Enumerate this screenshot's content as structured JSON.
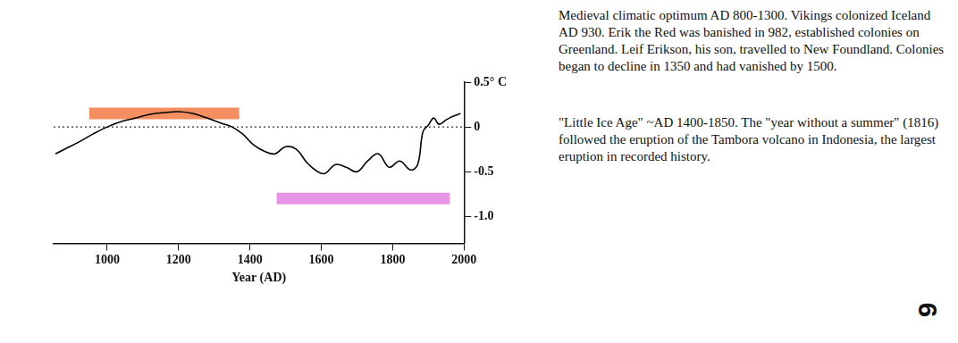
{
  "chart_data": {
    "type": "line",
    "x": [
      855,
      880,
      920,
      960,
      1000,
      1040,
      1080,
      1120,
      1160,
      1200,
      1240,
      1280,
      1320,
      1350,
      1380,
      1410,
      1440,
      1470,
      1500,
      1530,
      1560,
      1590,
      1610,
      1640,
      1670,
      1700,
      1730,
      1760,
      1790,
      1820,
      1850,
      1870,
      1885,
      1900,
      1915,
      1930,
      1950,
      1970,
      1990
    ],
    "values": [
      -0.3,
      -0.25,
      -0.17,
      -0.08,
      0,
      0.06,
      0.1,
      0.14,
      0.16,
      0.17,
      0.15,
      0.1,
      0.04,
      0,
      -0.08,
      -0.2,
      -0.27,
      -0.3,
      -0.22,
      -0.25,
      -0.4,
      -0.5,
      -0.52,
      -0.42,
      -0.45,
      -0.5,
      -0.38,
      -0.3,
      -0.45,
      -0.38,
      -0.48,
      -0.42,
      -0.05,
      0.02,
      0.1,
      0.03,
      0.08,
      0.12,
      0.15
    ],
    "color": "#000000",
    "x_label": "Year (AD)",
    "xlim": [
      850,
      2000
    ],
    "xticks": [
      1000,
      1200,
      1400,
      1600,
      1800,
      2000
    ],
    "ylim": [
      -1.3,
      0.5
    ],
    "yticks": [
      {
        "value": 0.5,
        "label": "0.5° C"
      },
      0,
      -0.5,
      {
        "value": -1,
        "label": "-1.0"
      }
    ],
    "grid": false,
    "reference_line": {
      "y": 0,
      "line_style": "dotted",
      "color": "#000000"
    },
    "bands": [
      {
        "x": [
          950,
          1370
        ],
        "y": 0.15,
        "color": "#f0733a"
      },
      {
        "x": [
          1475,
          1960
        ],
        "y": -0.8,
        "color": "#e27ae0"
      }
    ]
  },
  "annotations": [
    "Medieval climatic optimum AD 800-1300. Vikings colonized Iceland AD 930. Erik the Red was banished in 982, established colonies on Greenland. Leif Erikson, his son, travelled to New Foundland. Colonies began to decline in 1350 and had vanished by 1500.",
    "\"Little Ice Age\" ~AD 1400-1850. The \"year without a summer\" (1816) followed the eruption of the Tambora volcano in Indonesia, the largest eruption in recorded history."
  ],
  "page_number": "9"
}
